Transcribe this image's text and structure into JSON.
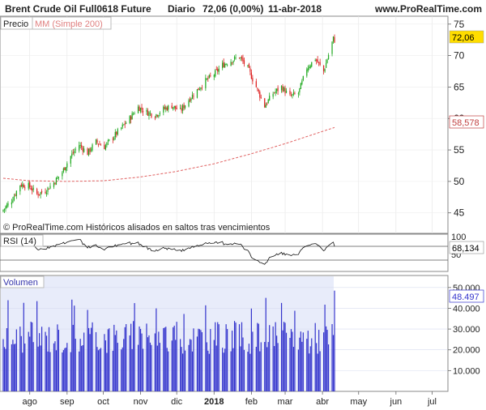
{
  "header": {
    "instrument": "Brent Crude Oil Full0618 Future",
    "period": "Diario",
    "last": "72,06 (0,00%)",
    "date": "11-abr-2018",
    "site": "www.ProRealTime.com"
  },
  "price_panel": {
    "label": "Precio",
    "ma_label": "MM (Simple 200)",
    "last_badge": "72,06",
    "ma_badge": "58,578",
    "watermark": "© ProRealTime.com  Históricos alisados en saltos tras vencimientos",
    "yticks": [
      "75",
      "70",
      "65",
      "60",
      "55",
      "50",
      "45"
    ]
  },
  "rsi_panel": {
    "label": "RSI (14)",
    "badge": "68,134",
    "yticks": [
      "100",
      "50"
    ]
  },
  "volume_panel": {
    "label": "Volumen",
    "badge": "48.497",
    "yticks": [
      "50.000",
      "40.000",
      "30.000",
      "20.000",
      "10.000"
    ]
  },
  "xaxis": {
    "labels": [
      "ago",
      "sep",
      "oct",
      "nov",
      "dic",
      "2018",
      "feb",
      "mar",
      "abr",
      "may",
      "jun",
      "jul"
    ]
  },
  "colors": {
    "up": "#22aa22",
    "down": "#dd2222",
    "ma": "#e06060",
    "volume": "#3333cc",
    "volume_bg": "#e8ecfa",
    "last_badge_bg": "#ffdd00",
    "ma_badge_fg": "#c04040"
  },
  "chart_data": [
    {
      "type": "candlestick",
      "title": "Brent Crude Oil Full0618 Future",
      "ylim": [
        42,
        76
      ],
      "x": [
        "2017-07-10",
        "2017-07-17",
        "2017-07-24",
        "2017-07-31",
        "2017-08-07",
        "2017-08-14",
        "2017-08-21",
        "2017-08-28",
        "2017-09-04",
        "2017-09-11",
        "2017-09-18",
        "2017-09-25",
        "2017-10-02",
        "2017-10-09",
        "2017-10-16",
        "2017-10-23",
        "2017-10-30",
        "2017-11-06",
        "2017-11-13",
        "2017-11-20",
        "2017-11-27",
        "2017-12-04",
        "2017-12-11",
        "2017-12-18",
        "2017-12-25",
        "2018-01-01",
        "2018-01-08",
        "2018-01-15",
        "2018-01-22",
        "2018-01-29",
        "2018-02-05",
        "2018-02-12",
        "2018-02-19",
        "2018-02-26",
        "2018-03-05",
        "2018-03-12",
        "2018-03-19",
        "2018-03-26",
        "2018-04-02",
        "2018-04-09"
      ],
      "close": [
        45.5,
        47.0,
        49.5,
        49.3,
        48.0,
        48.5,
        49.8,
        51.5,
        54.0,
        55.8,
        54.5,
        56.3,
        55.5,
        57.0,
        58.5,
        60.0,
        61.8,
        61.0,
        60.5,
        61.5,
        62.0,
        61.2,
        63.0,
        64.5,
        66.0,
        67.0,
        68.5,
        69.2,
        69.8,
        68.0,
        65.0,
        62.0,
        64.0,
        65.0,
        63.5,
        64.0,
        68.0,
        69.5,
        67.5,
        72.06
      ],
      "ma200": {
        "x": [
          "2017-07-10",
          "2017-08-01",
          "2017-09-01",
          "2017-10-01",
          "2017-11-01",
          "2017-12-01",
          "2018-01-01",
          "2018-02-01",
          "2018-03-01",
          "2018-04-11"
        ],
        "values": [
          50.5,
          50.1,
          50.0,
          50.1,
          50.7,
          51.6,
          52.8,
          54.4,
          56.0,
          58.578
        ]
      }
    },
    {
      "type": "line",
      "title": "RSI (14)",
      "ylim": [
        0,
        100
      ],
      "last": 68.134
    },
    {
      "type": "bar",
      "title": "Volumen",
      "ylim": [
        0,
        55000
      ],
      "last": 48497
    }
  ]
}
